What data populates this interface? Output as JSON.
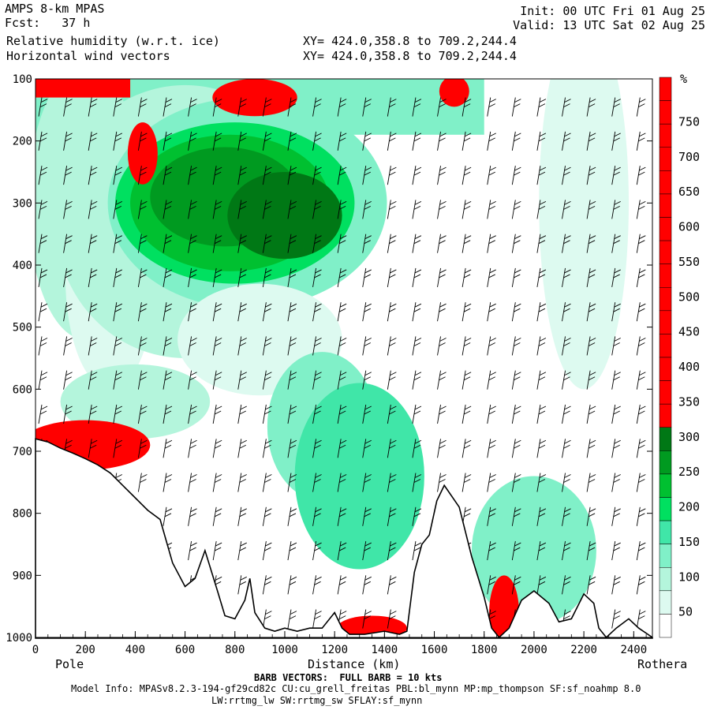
{
  "header": {
    "model": "AMPS 8-km MPAS",
    "fcst": "Fcst:   37 h",
    "field1": "Relative humidity (w.r.t. ice)",
    "field2": "Horizontal wind vectors",
    "xy1": "XY= 424.0,358.8 to 709.2,244.4",
    "xy2": "XY= 424.0,358.8 to 709.2,244.4",
    "init": "Init: 00 UTC Fri 01 Aug 25",
    "valid": "Valid: 13 UTC Sat 02 Aug 25"
  },
  "footer": {
    "barb_note": "BARB VECTORS:  FULL BARB = 10 kts",
    "model_info": "Model Info: MPASv8.2.3-194-gf29cd82c CU:cu_grell_freitas PBL:bl_mynn MP:mp_thompson SF:sf_noahmp 8.0",
    "model_info2": "LW:rrtmg_lw SW:rrtmg_sw SFLAY:sf_mynn"
  },
  "chart_data": {
    "type": "heatmap",
    "title": "Relative humidity (w.r.t. ice)",
    "xlabel": "Distance (km)",
    "ylabel": "",
    "xlim": [
      0,
      2475
    ],
    "ylim": [
      1000,
      100
    ],
    "x_ticks": [
      "0",
      "200",
      "400",
      "600",
      "800",
      "1000",
      "1200",
      "1400",
      "1600",
      "1800",
      "2000",
      "2200",
      "2400"
    ],
    "x_tick_values": [
      0,
      200,
      400,
      600,
      800,
      1000,
      1200,
      1400,
      1600,
      1800,
      2000,
      2200,
      2400
    ],
    "y_ticks": [
      "100",
      "200",
      "300",
      "400",
      "500",
      "600",
      "700",
      "800",
      "900",
      "1000"
    ],
    "y_tick_values": [
      100,
      200,
      300,
      400,
      500,
      600,
      700,
      800,
      900,
      1000
    ],
    "x_endpoints": {
      "left": "Pole",
      "right": "Rothera"
    },
    "colorbar": {
      "unit": "%",
      "labels": [
        "50",
        "100",
        "150",
        "200",
        "250",
        "300",
        "350",
        "400",
        "450",
        "500",
        "550",
        "600",
        "650",
        "700",
        "750"
      ],
      "label_values": [
        50,
        100,
        150,
        200,
        250,
        300,
        350,
        400,
        450,
        500,
        550,
        600,
        650,
        700,
        750
      ],
      "colors": [
        "#ffffff",
        "#ddfaf0",
        "#b4f5dc",
        "#80f0c8",
        "#40e6a8",
        "#00e060",
        "#00c030",
        "#009a20",
        "#007815",
        "#ff0000",
        "#ff0000",
        "#ff0000",
        "#ff0000",
        "#ff0000",
        "#ff0000",
        "#ff0000",
        "#ff0000",
        "#ff0000",
        "#ff0000",
        "#ff0000",
        "#ff0000",
        "#ff0000",
        "#ff0000",
        "#ff0000"
      ]
    },
    "terrain_pressure": [
      {
        "x": 0,
        "p": 680
      },
      {
        "x": 50,
        "p": 685
      },
      {
        "x": 100,
        "p": 695
      },
      {
        "x": 150,
        "p": 703
      },
      {
        "x": 200,
        "p": 712
      },
      {
        "x": 250,
        "p": 722
      },
      {
        "x": 300,
        "p": 735
      },
      {
        "x": 350,
        "p": 755
      },
      {
        "x": 400,
        "p": 775
      },
      {
        "x": 450,
        "p": 795
      },
      {
        "x": 500,
        "p": 810
      },
      {
        "x": 550,
        "p": 880
      },
      {
        "x": 600,
        "p": 918
      },
      {
        "x": 640,
        "p": 905
      },
      {
        "x": 680,
        "p": 860
      },
      {
        "x": 730,
        "p": 925
      },
      {
        "x": 760,
        "p": 965
      },
      {
        "x": 800,
        "p": 970
      },
      {
        "x": 840,
        "p": 940
      },
      {
        "x": 860,
        "p": 905
      },
      {
        "x": 880,
        "p": 960
      },
      {
        "x": 920,
        "p": 985
      },
      {
        "x": 960,
        "p": 990
      },
      {
        "x": 1000,
        "p": 985
      },
      {
        "x": 1050,
        "p": 990
      },
      {
        "x": 1100,
        "p": 985
      },
      {
        "x": 1150,
        "p": 985
      },
      {
        "x": 1200,
        "p": 960
      },
      {
        "x": 1230,
        "p": 985
      },
      {
        "x": 1260,
        "p": 995
      },
      {
        "x": 1320,
        "p": 995
      },
      {
        "x": 1400,
        "p": 990
      },
      {
        "x": 1460,
        "p": 995
      },
      {
        "x": 1490,
        "p": 990
      },
      {
        "x": 1520,
        "p": 895
      },
      {
        "x": 1550,
        "p": 850
      },
      {
        "x": 1580,
        "p": 835
      },
      {
        "x": 1610,
        "p": 780
      },
      {
        "x": 1640,
        "p": 755
      },
      {
        "x": 1700,
        "p": 790
      },
      {
        "x": 1750,
        "p": 870
      },
      {
        "x": 1800,
        "p": 935
      },
      {
        "x": 1830,
        "p": 985
      },
      {
        "x": 1860,
        "p": 1000
      },
      {
        "x": 1900,
        "p": 985
      },
      {
        "x": 1950,
        "p": 940
      },
      {
        "x": 2000,
        "p": 925
      },
      {
        "x": 2060,
        "p": 945
      },
      {
        "x": 2100,
        "p": 975
      },
      {
        "x": 2150,
        "p": 970
      },
      {
        "x": 2200,
        "p": 930
      },
      {
        "x": 2240,
        "p": 945
      },
      {
        "x": 2260,
        "p": 985
      },
      {
        "x": 2290,
        "p": 1000
      },
      {
        "x": 2330,
        "p": 985
      },
      {
        "x": 2380,
        "p": 970
      },
      {
        "x": 2420,
        "p": 985
      },
      {
        "x": 2475,
        "p": 1000
      }
    ],
    "grid": false,
    "legend_placement": "right"
  }
}
